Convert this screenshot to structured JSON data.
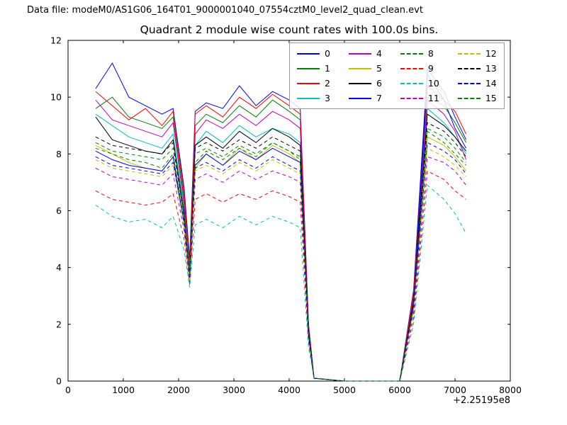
{
  "header": {
    "datafile_label": "Data file: modeM0/AS1G06_164T01_9000001040_07554cztM0_level2_quad_clean.evt"
  },
  "chart_data": {
    "type": "line",
    "title": "Quadrant 2 module wise count rates with 100.0s bins.",
    "xlabel": "",
    "ylabel": "",
    "x_offset_text": "+2.25195e8",
    "xlim": [
      0,
      8000
    ],
    "ylim": [
      0,
      12
    ],
    "xticks": [
      0,
      1000,
      2000,
      3000,
      4000,
      5000,
      6000,
      7000,
      8000
    ],
    "yticks": [
      0,
      2,
      4,
      6,
      8,
      10,
      12
    ],
    "grid": false,
    "legend_position": "upper center",
    "x": [
      500,
      800,
      1100,
      1400,
      1700,
      1900,
      2100,
      2200,
      2300,
      2500,
      2800,
      3100,
      3400,
      3700,
      4000,
      4200,
      4350,
      4450,
      5000,
      6000,
      6250,
      6500,
      6800,
      7000,
      7200
    ],
    "series": [
      {
        "name": "0",
        "color": "#0000ff",
        "dash": false,
        "y": [
          10.3,
          11.2,
          10.0,
          9.7,
          9.4,
          9.6,
          6.8,
          4.3,
          9.5,
          9.8,
          9.6,
          10.4,
          9.7,
          10.2,
          9.9,
          9.6,
          2.0,
          0.1,
          0.0,
          0.0,
          3.2,
          11.0,
          10.2,
          9.3,
          8.5
        ]
      },
      {
        "name": "1",
        "color": "#008000",
        "dash": false,
        "y": [
          9.6,
          10.0,
          9.3,
          9.1,
          8.9,
          9.3,
          6.4,
          4.1,
          9.0,
          9.4,
          9.1,
          9.7,
          9.3,
          9.9,
          9.5,
          9.2,
          1.9,
          0.1,
          0.0,
          0.0,
          3.0,
          10.0,
          9.7,
          9.1,
          8.4
        ]
      },
      {
        "name": "2",
        "color": "#ff0000",
        "dash": false,
        "y": [
          10.2,
          9.7,
          9.2,
          9.6,
          9.0,
          9.5,
          6.6,
          4.0,
          9.4,
          9.7,
          9.3,
          10.0,
          9.6,
          10.1,
          9.7,
          9.4,
          2.0,
          0.1,
          0.0,
          0.0,
          3.1,
          10.4,
          9.9,
          9.5,
          8.7
        ]
      },
      {
        "name": "3",
        "color": "#00bfbf",
        "dash": false,
        "y": [
          9.4,
          9.0,
          8.6,
          8.4,
          8.2,
          8.7,
          6.0,
          3.8,
          8.3,
          8.8,
          8.4,
          9.0,
          8.6,
          8.9,
          8.7,
          8.4,
          1.8,
          0.1,
          0.0,
          0.0,
          2.8,
          9.6,
          9.1,
          8.6,
          8.0
        ]
      },
      {
        "name": "4",
        "color": "#bf00bf",
        "dash": false,
        "y": [
          9.9,
          9.2,
          9.0,
          8.8,
          8.6,
          9.1,
          6.2,
          3.4,
          8.7,
          9.2,
          8.9,
          9.4,
          9.0,
          9.5,
          9.2,
          8.9,
          1.9,
          0.1,
          0.0,
          0.0,
          2.9,
          9.9,
          9.4,
          8.8,
          7.8
        ]
      },
      {
        "name": "5",
        "color": "#bfbf00",
        "dash": false,
        "y": [
          8.3,
          8.0,
          7.7,
          7.5,
          7.4,
          7.9,
          5.6,
          3.5,
          7.5,
          8.0,
          7.6,
          8.2,
          7.8,
          8.3,
          8.0,
          7.7,
          1.6,
          0.1,
          0.0,
          0.0,
          2.6,
          8.6,
          8.3,
          7.9,
          7.4
        ]
      },
      {
        "name": "6",
        "color": "#000000",
        "dash": false,
        "y": [
          9.3,
          8.5,
          8.3,
          8.1,
          8.0,
          8.5,
          5.9,
          3.7,
          8.3,
          8.6,
          8.2,
          8.8,
          8.4,
          8.9,
          8.6,
          8.3,
          1.8,
          0.1,
          0.0,
          0.0,
          2.8,
          9.4,
          9.0,
          8.6,
          8.1
        ]
      },
      {
        "name": "7",
        "color": "#0000ff",
        "dash": false,
        "y": [
          8.1,
          7.8,
          7.6,
          7.5,
          7.4,
          7.9,
          5.5,
          3.6,
          7.6,
          8.0,
          7.6,
          8.1,
          7.8,
          8.2,
          7.9,
          7.7,
          1.6,
          0.1,
          0.0,
          0.0,
          2.6,
          10.8,
          9.9,
          8.9,
          8.2
        ]
      },
      {
        "name": "8",
        "color": "#008000",
        "dash": true,
        "y": [
          8.2,
          8.0,
          7.8,
          7.7,
          7.5,
          8.0,
          5.7,
          3.6,
          7.7,
          8.1,
          7.8,
          8.2,
          7.9,
          8.4,
          8.1,
          7.8,
          1.7,
          0.1,
          0.0,
          0.0,
          2.7,
          8.8,
          8.4,
          8.0,
          7.6
        ]
      },
      {
        "name": "9",
        "color": "#ff0000",
        "dash": true,
        "y": [
          6.7,
          6.4,
          6.3,
          6.2,
          6.3,
          6.6,
          5.0,
          3.4,
          6.4,
          6.6,
          6.3,
          6.6,
          6.4,
          6.7,
          6.5,
          6.3,
          1.4,
          0.1,
          0.0,
          0.0,
          2.2,
          7.4,
          7.1,
          6.7,
          6.4
        ]
      },
      {
        "name": "10",
        "color": "#00bfbf",
        "dash": true,
        "y": [
          6.2,
          5.8,
          5.6,
          5.7,
          5.4,
          5.8,
          4.6,
          3.3,
          5.5,
          5.7,
          5.4,
          5.8,
          5.5,
          5.8,
          5.6,
          5.4,
          1.2,
          0.1,
          0.0,
          0.0,
          2.0,
          6.9,
          6.4,
          5.9,
          5.2
        ]
      },
      {
        "name": "11",
        "color": "#bf00bf",
        "dash": true,
        "y": [
          7.5,
          7.2,
          7.1,
          7.0,
          6.9,
          7.3,
          5.3,
          3.5,
          7.1,
          7.3,
          7.0,
          7.4,
          7.1,
          7.4,
          7.2,
          7.0,
          1.5,
          0.1,
          0.0,
          0.0,
          2.4,
          7.9,
          7.7,
          7.4,
          6.9
        ]
      },
      {
        "name": "12",
        "color": "#bfbf00",
        "dash": true,
        "y": [
          7.8,
          7.5,
          7.4,
          7.3,
          7.2,
          7.6,
          5.5,
          3.5,
          7.4,
          7.6,
          7.3,
          7.7,
          7.4,
          7.8,
          7.5,
          7.3,
          1.6,
          0.1,
          0.0,
          0.0,
          2.5,
          8.2,
          7.9,
          7.6,
          7.2
        ]
      },
      {
        "name": "13",
        "color": "#000000",
        "dash": true,
        "y": [
          8.6,
          8.3,
          8.2,
          8.1,
          8.0,
          8.4,
          5.8,
          3.7,
          8.2,
          8.4,
          8.1,
          8.5,
          8.2,
          8.6,
          8.3,
          8.1,
          1.7,
          0.1,
          0.0,
          0.0,
          2.7,
          9.1,
          8.8,
          8.4,
          7.9
        ]
      },
      {
        "name": "14",
        "color": "#0000ff",
        "dash": true,
        "y": [
          7.9,
          7.6,
          7.5,
          7.4,
          7.3,
          7.7,
          5.6,
          3.6,
          7.5,
          7.7,
          7.4,
          7.8,
          7.5,
          7.9,
          7.6,
          7.4,
          1.6,
          0.1,
          0.0,
          0.0,
          2.6,
          8.4,
          8.1,
          7.8,
          7.3
        ]
      },
      {
        "name": "15",
        "color": "#008000",
        "dash": true,
        "y": [
          8.4,
          8.1,
          8.0,
          7.9,
          7.8,
          8.2,
          5.8,
          3.7,
          8.0,
          8.2,
          7.9,
          8.3,
          8.0,
          8.4,
          8.1,
          7.9,
          1.7,
          0.1,
          0.0,
          0.0,
          2.7,
          8.9,
          8.6,
          8.2,
          7.7
        ]
      }
    ]
  }
}
